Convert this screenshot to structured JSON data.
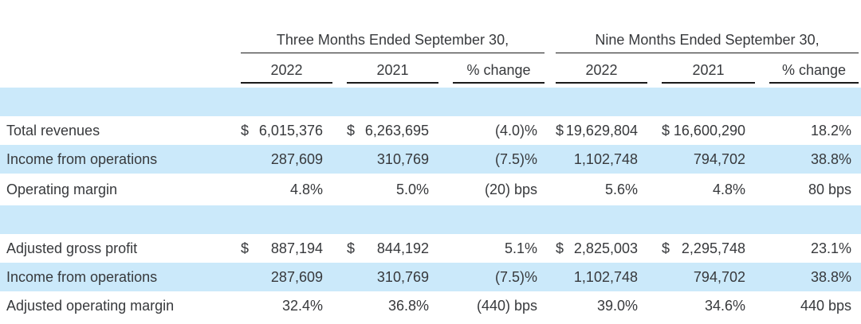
{
  "table": {
    "group_headers": [
      {
        "label": "Three Months Ended September 30,"
      },
      {
        "label": "Nine Months Ended September 30,"
      }
    ],
    "column_headers": [
      "2022",
      "2021",
      "% change",
      "2022",
      "2021",
      "% change"
    ],
    "rows": [
      {
        "label": "",
        "shaded": true,
        "cells": [
          null,
          null,
          null,
          null,
          null,
          null
        ]
      },
      {
        "label": "Total revenues",
        "shaded": false,
        "cells": [
          {
            "dollar": "$",
            "value": "6,015,376"
          },
          {
            "dollar": "$",
            "value": "6,263,695"
          },
          {
            "value": "(4.0)%"
          },
          {
            "dollar": "$",
            "value": "19,629,804"
          },
          {
            "dollar": "$",
            "value": "16,600,290"
          },
          {
            "value": "18.2%"
          }
        ]
      },
      {
        "label": "Income from operations",
        "shaded": true,
        "cells": [
          {
            "value": "287,609"
          },
          {
            "value": "310,769"
          },
          {
            "value": "(7.5)%"
          },
          {
            "value": "1,102,748"
          },
          {
            "value": "794,702"
          },
          {
            "value": "38.8%"
          }
        ]
      },
      {
        "label": "Operating margin",
        "shaded": false,
        "cells": [
          {
            "value": "4.8%"
          },
          {
            "value": "5.0%"
          },
          {
            "value": "(20) bps"
          },
          {
            "value": "5.6%"
          },
          {
            "value": "4.8%"
          },
          {
            "value": "80 bps"
          }
        ]
      },
      {
        "label": "",
        "shaded": true,
        "cells": [
          null,
          null,
          null,
          null,
          null,
          null
        ]
      },
      {
        "label": "Adjusted gross profit",
        "shaded": false,
        "cells": [
          {
            "dollar": "$",
            "value": "887,194"
          },
          {
            "dollar": "$",
            "value": "844,192"
          },
          {
            "value": "5.1%"
          },
          {
            "dollar": "$",
            "value": "2,825,003"
          },
          {
            "dollar": "$",
            "value": "2,295,748"
          },
          {
            "value": "23.1%"
          }
        ]
      },
      {
        "label": "Income from operations",
        "shaded": true,
        "cells": [
          {
            "value": "287,609"
          },
          {
            "value": "310,769"
          },
          {
            "value": "(7.5)%"
          },
          {
            "value": "1,102,748"
          },
          {
            "value": "794,702"
          },
          {
            "value": "38.8%"
          }
        ]
      },
      {
        "label": "Adjusted operating margin",
        "shaded": false,
        "cells": [
          {
            "value": "32.4%"
          },
          {
            "value": "36.8%"
          },
          {
            "value": "(440) bps"
          },
          {
            "value": "39.0%"
          },
          {
            "value": "34.6%"
          },
          {
            "value": "440 bps"
          }
        ]
      }
    ],
    "colors": {
      "shaded_row": "#cbe9fa",
      "text": "#37393c",
      "rule": "#1a1a1a"
    }
  }
}
